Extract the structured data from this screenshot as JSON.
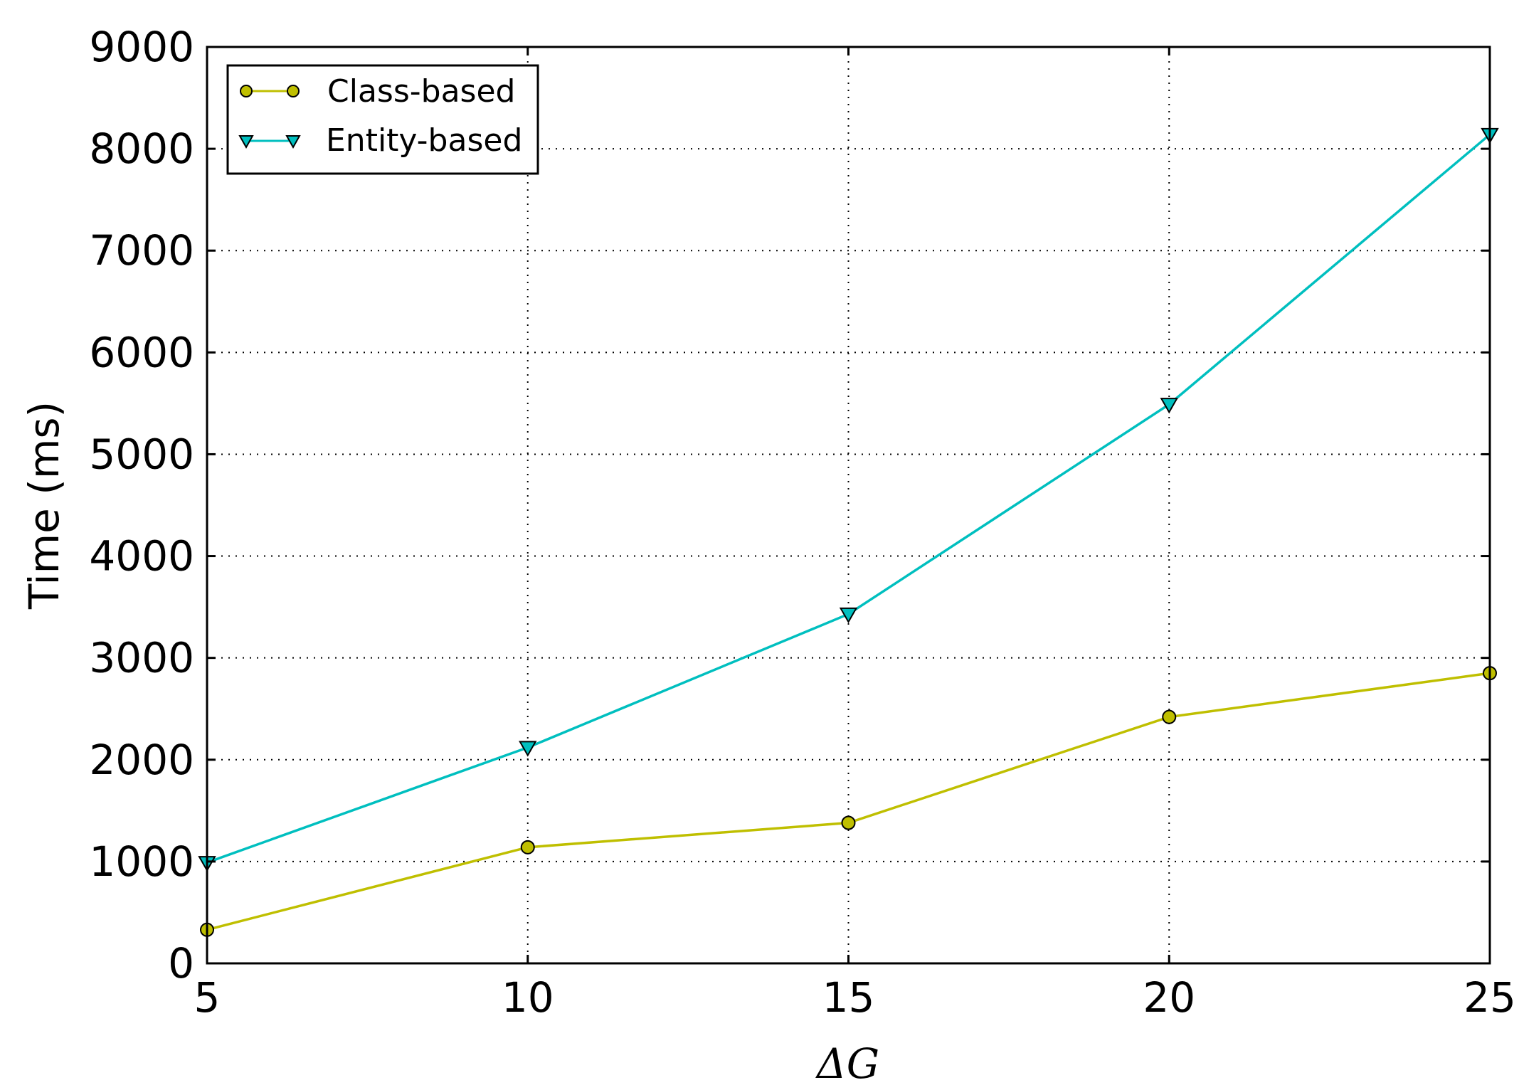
{
  "chart_data": {
    "type": "line",
    "title": "",
    "xlabel": "ΔG",
    "ylabel": "Time (ms)",
    "xlim": [
      5,
      25
    ],
    "ylim": [
      0,
      9000
    ],
    "xticks": [
      5,
      10,
      15,
      20,
      25
    ],
    "yticks": [
      0,
      1000,
      2000,
      3000,
      4000,
      5000,
      6000,
      7000,
      8000,
      9000
    ],
    "xtick_labels": [
      "5",
      "10",
      "15",
      "20",
      "25"
    ],
    "ytick_labels": [
      "0",
      "1000",
      "2000",
      "3000",
      "4000",
      "5000",
      "6000",
      "7000",
      "8000",
      "9000"
    ],
    "grid": true,
    "legend_position": "top-left",
    "x": [
      5,
      10,
      15,
      20,
      25
    ],
    "series": [
      {
        "name": "Class-based",
        "marker": "circle",
        "color": "#bfbf00",
        "values": [
          330,
          1140,
          1380,
          2420,
          2850
        ]
      },
      {
        "name": "Entity-based",
        "marker": "triangle-down",
        "color": "#00bfbf",
        "values": [
          990,
          2120,
          3430,
          5490,
          8140
        ]
      }
    ]
  }
}
